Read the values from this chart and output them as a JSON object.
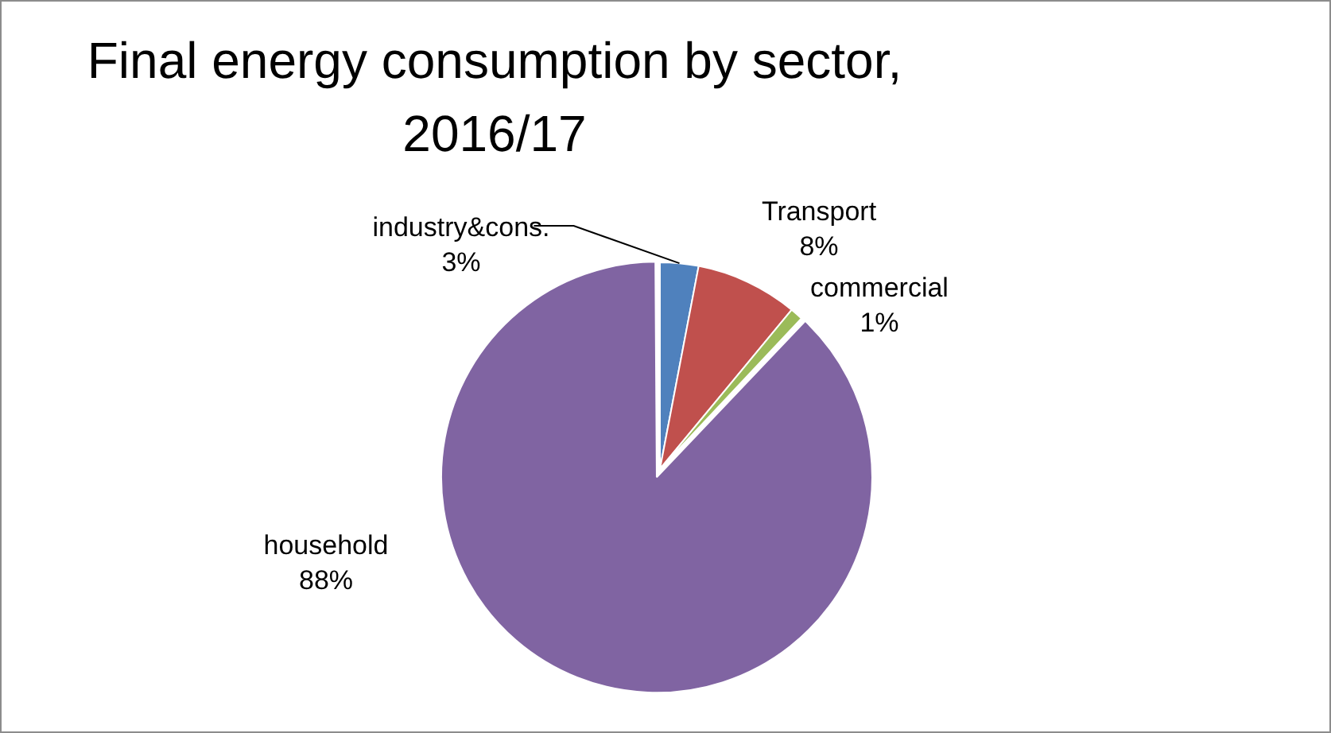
{
  "chart_data": {
    "type": "pie",
    "title": "Final energy consumption by sector, 2016/17",
    "categories": [
      "industry&cons.",
      "Transport",
      "commercial",
      "household"
    ],
    "values": [
      3,
      8,
      1,
      88
    ],
    "value_labels": [
      "3%",
      "8%",
      "1%",
      "88%"
    ],
    "colors": [
      "#4f81bd",
      "#c0504d",
      "#9bbb59",
      "#8064a2"
    ],
    "legend": false
  }
}
